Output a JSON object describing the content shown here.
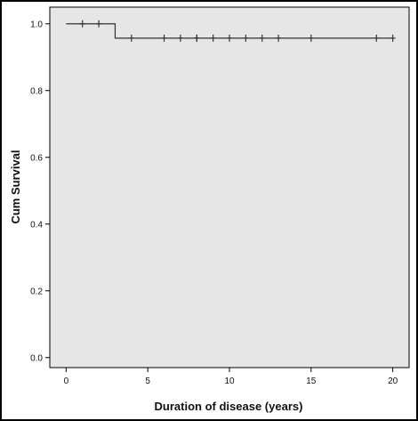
{
  "colors": {
    "frame": "#000000",
    "outer_background": "#ffffff",
    "plot_background": "#e6e6e6",
    "line": "#333333"
  },
  "chart_data": {
    "type": "line",
    "subtype": "kaplan-meier-step",
    "title": "",
    "xlabel": "Duration of disease (years)",
    "ylabel": "Cum Survival",
    "xlim": [
      -1,
      21
    ],
    "ylim": [
      -0.03,
      1.05
    ],
    "xticks": [
      0,
      5,
      10,
      15,
      20
    ],
    "xtick_labels": [
      "0",
      "5",
      "10",
      "15",
      "20"
    ],
    "yticks": [
      0.0,
      0.2,
      0.4,
      0.6,
      0.8,
      1.0
    ],
    "ytick_labels": [
      "0.0",
      "0.2",
      "0.4",
      "0.6",
      "0.8",
      "1.0"
    ],
    "grid": false,
    "legend": "none",
    "series": [
      {
        "steps": [
          {
            "x": 0,
            "y": 1.0
          },
          {
            "x": 3,
            "y": 1.0
          },
          {
            "x": 3,
            "y": 0.957
          },
          {
            "x": 20,
            "y": 0.957
          }
        ],
        "censored": [
          {
            "x": 1,
            "y": 1.0
          },
          {
            "x": 2,
            "y": 1.0
          },
          {
            "x": 4,
            "y": 0.957
          },
          {
            "x": 6,
            "y": 0.957
          },
          {
            "x": 7,
            "y": 0.957
          },
          {
            "x": 8,
            "y": 0.957
          },
          {
            "x": 8,
            "y": 0.957
          },
          {
            "x": 9,
            "y": 0.957
          },
          {
            "x": 10,
            "y": 0.957
          },
          {
            "x": 11,
            "y": 0.957
          },
          {
            "x": 12,
            "y": 0.957
          },
          {
            "x": 13,
            "y": 0.957
          },
          {
            "x": 15,
            "y": 0.957
          },
          {
            "x": 19,
            "y": 0.957
          },
          {
            "x": 20,
            "y": 0.957
          }
        ]
      }
    ]
  }
}
